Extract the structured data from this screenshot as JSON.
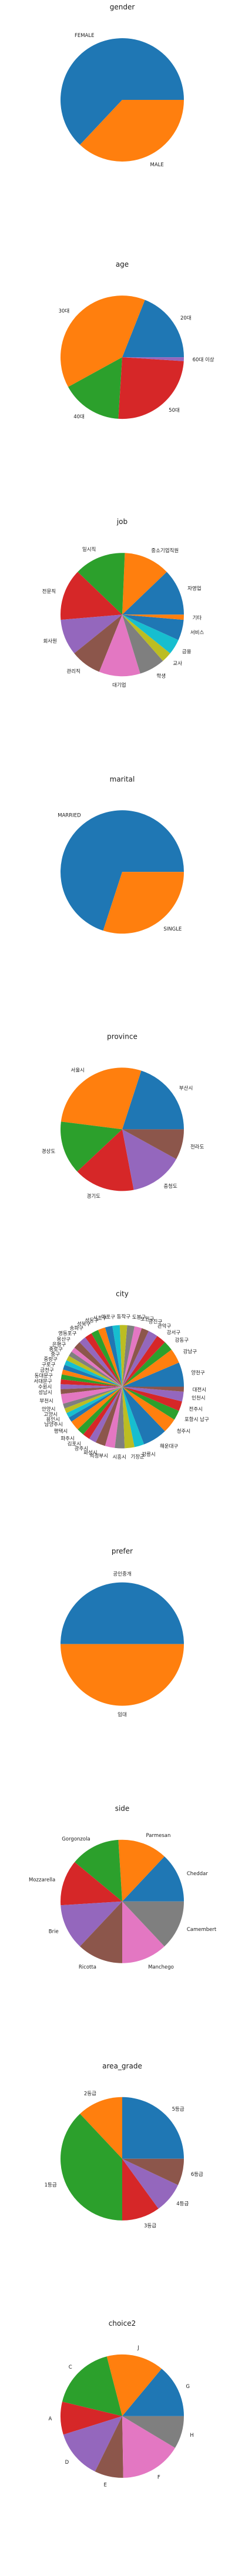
{
  "palette": [
    "#1f77b4",
    "#ff7f0e",
    "#2ca02c",
    "#d62728",
    "#9467bd",
    "#8c564b",
    "#e377c2",
    "#7f7f7f",
    "#bcbd22",
    "#17becf"
  ],
  "chart_data": [
    {
      "type": "pie",
      "title": "gender",
      "categories": [
        "FEMALE",
        "MALE"
      ],
      "values": [
        63,
        37
      ]
    },
    {
      "type": "pie",
      "title": "age",
      "categories": [
        "20대",
        "30대",
        "40대",
        "50대",
        "60대 이상"
      ],
      "values": [
        19,
        39,
        16,
        25,
        1
      ]
    },
    {
      "type": "pie",
      "title": "job",
      "categories": [
        "자영업",
        "중소기업직원",
        "일시직",
        "전문직",
        "회사원",
        "관리직",
        "대기업",
        "학생",
        "교사",
        "금융",
        "서비스",
        "기타"
      ],
      "values": [
        9,
        9,
        10,
        10,
        7,
        6,
        8,
        5,
        2,
        3,
        4,
        1
      ]
    },
    {
      "type": "pie",
      "title": "marital",
      "categories": [
        "MARRIED",
        "SINGLE"
      ],
      "values": [
        70,
        30
      ]
    },
    {
      "type": "pie",
      "title": "province",
      "categories": [
        "부산시",
        "서울시",
        "경상도",
        "경기도",
        "충청도",
        "전라도"
      ],
      "values": [
        20,
        28,
        14,
        16,
        14,
        8
      ]
    },
    {
      "type": "pie",
      "title": "city",
      "categories": [
        "양천구",
        "강남구",
        "강동구",
        "강서구",
        "관악구",
        "광진구",
        "노원구",
        "도봉구",
        "동작구",
        "마포구",
        "서초구",
        "성동구",
        "성북구",
        "송파구",
        "영등포구",
        "용산구",
        "은평구",
        "종로구",
        "중구",
        "중랑구",
        "구로구",
        "금천구",
        "동대문구",
        "서대문구",
        "수원시",
        "성남시",
        "부천시",
        "안양시",
        "고양시",
        "용인시",
        "남양주시",
        "평택시",
        "파주시",
        "김포시",
        "광주시",
        "화성시",
        "의정부시",
        "시흥시",
        "기장군",
        "강릉시",
        "해운대구",
        "청주시",
        "포항시 남구",
        "전주시",
        "인천시",
        "대전시"
      ],
      "values": [
        5,
        3,
        2,
        2,
        2,
        1.5,
        1.5,
        1.5,
        1.5,
        1.5,
        1.5,
        1.5,
        1.5,
        1.5,
        1.5,
        1.5,
        1,
        1,
        1,
        1,
        1,
        1,
        1,
        1,
        1,
        1,
        2,
        1,
        1,
        1,
        1,
        2,
        1.5,
        1.5,
        1.5,
        2,
        2,
        2,
        2,
        2,
        5,
        3,
        2,
        2,
        2,
        1
      ]
    },
    {
      "type": "pie",
      "title": "prefer",
      "categories": [
        "공인중개",
        "임대"
      ],
      "values": [
        50,
        50
      ]
    },
    {
      "type": "pie",
      "title": "side",
      "categories": [
        "Cheddar",
        "Parmesan",
        "Gorgonzola",
        "Mozzarella",
        "Brie",
        "Ricotta",
        "Manchego",
        "Camembert"
      ],
      "values": [
        13,
        13,
        13,
        12,
        12,
        12,
        12,
        13
      ]
    },
    {
      "type": "pie",
      "title": "area_grade",
      "categories": [
        "5등급",
        "2등급",
        "1등급",
        "3등급",
        "4등급",
        "6등급"
      ],
      "values": [
        25,
        12,
        38,
        10,
        8,
        7
      ]
    },
    {
      "type": "pie",
      "title": "choice2",
      "categories": [
        "G",
        "J",
        "C",
        "A",
        "D",
        "E",
        "F",
        "H"
      ],
      "values": [
        13,
        14,
        16,
        8,
        12,
        7,
        15,
        8
      ]
    }
  ]
}
